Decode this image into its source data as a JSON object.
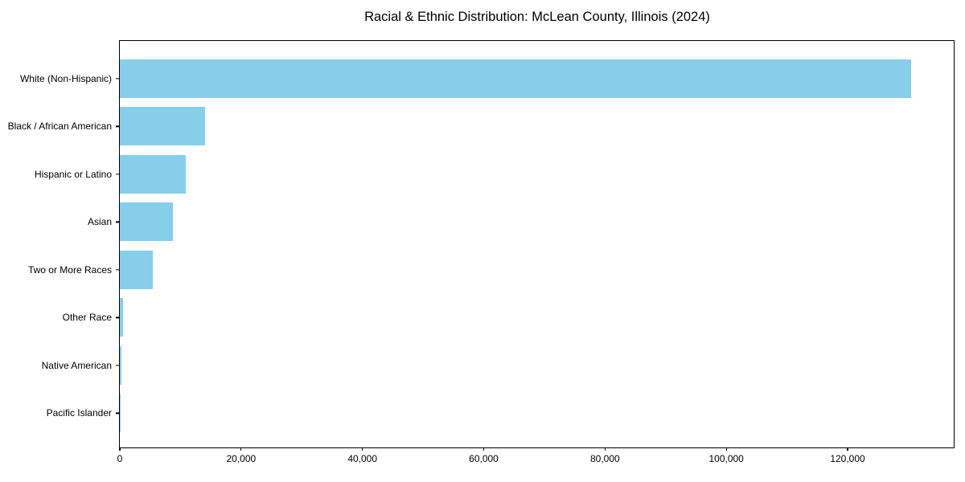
{
  "chart_data": {
    "type": "bar",
    "orientation": "horizontal",
    "title": "Racial & Ethnic Distribution: McLean County, Illinois (2024)",
    "categories": [
      "White (Non-Hispanic)",
      "Black / African American",
      "Hispanic or Latino",
      "Asian",
      "Two or More Races",
      "Other Race",
      "Native American",
      "Pacific Islander"
    ],
    "values": [
      130500,
      14100,
      10900,
      8800,
      5400,
      500,
      200,
      50
    ],
    "xlabel": "",
    "ylabel": "",
    "xlim": [
      0,
      137500
    ],
    "xticks": {
      "values": [
        0,
        20000,
        40000,
        60000,
        80000,
        100000,
        120000
      ],
      "labels": [
        "0",
        "20,000",
        "40,000",
        "60,000",
        "80,000",
        "100,000",
        "120,000"
      ]
    },
    "grid": false,
    "legend": null,
    "bar_color": "#87CEEB",
    "frame_color": "#000000",
    "background_color": "#ffffff"
  }
}
